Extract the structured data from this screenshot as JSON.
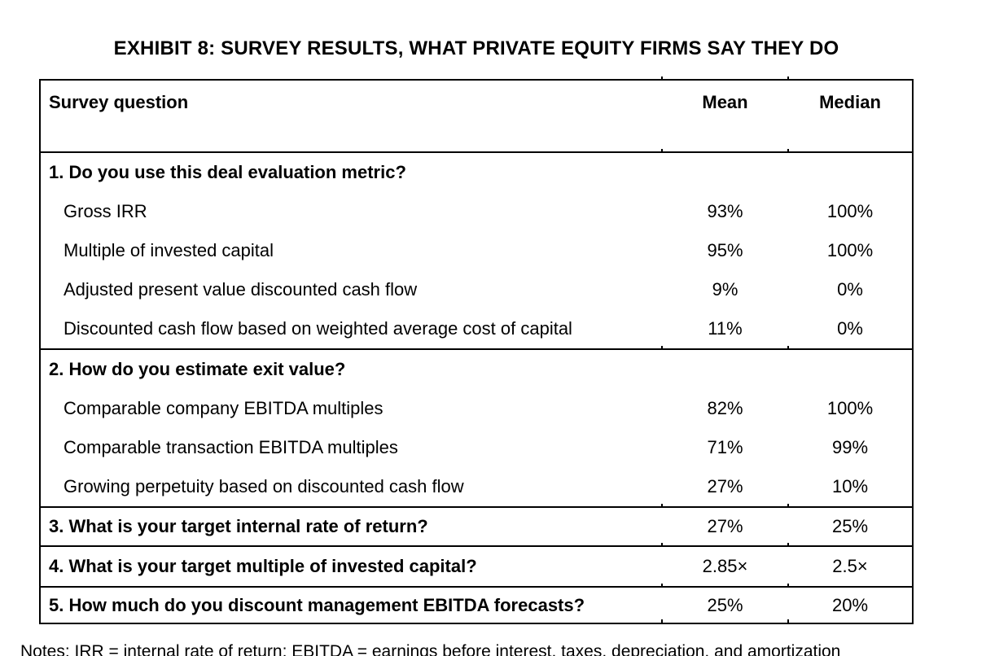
{
  "page": {
    "title": "EXHIBIT 8: SURVEY RESULTS, WHAT PRIVATE EQUITY FIRMS SAY THEY DO",
    "notes": "Notes: IRR = internal rate of return; EBITDA = earnings before interest, taxes, depreciation, and amortization"
  },
  "table": {
    "columns": {
      "question": "Survey question",
      "mean": "Mean",
      "median": "Median"
    },
    "sections": [
      {
        "title": "1. Do you use this deal evaluation metric?",
        "rows": [
          {
            "label": "Gross IRR",
            "mean": "93%",
            "median": "100%"
          },
          {
            "label": "Multiple of invested capital",
            "mean": "95%",
            "median": "100%"
          },
          {
            "label": "Adjusted present value discounted cash flow",
            "mean": "9%",
            "median": "0%"
          },
          {
            "label": "Discounted cash flow based on weighted average cost of capital",
            "mean": "11%",
            "median": "0%"
          }
        ]
      },
      {
        "title": "2. How do you estimate exit value?",
        "rows": [
          {
            "label": "Comparable company EBITDA multiples",
            "mean": "82%",
            "median": "100%"
          },
          {
            "label": "Comparable transaction EBITDA multiples",
            "mean": "71%",
            "median": "99%"
          },
          {
            "label": "Growing perpetuity based on discounted cash flow",
            "mean": "27%",
            "median": "10%"
          }
        ]
      },
      {
        "title": "3. What is your target internal rate of return?",
        "mean": "27%",
        "median": "25%"
      },
      {
        "title": "4. What is your target multiple of invested capital?",
        "mean": "2.85×",
        "median": "2.5×"
      },
      {
        "title": "5. How much do you discount management EBITDA forecasts?",
        "mean": "25%",
        "median": "20%"
      }
    ]
  }
}
